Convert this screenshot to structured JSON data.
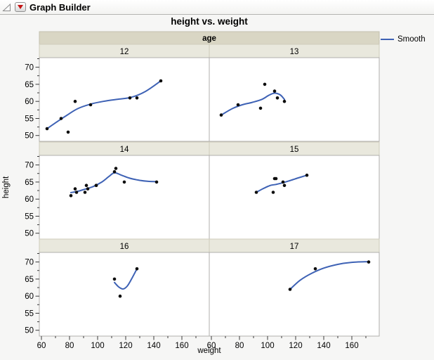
{
  "titlebar": {
    "title": "Graph Builder"
  },
  "chart_data": {
    "type": "scatter",
    "title": "height vs. weight",
    "xlabel": "weight",
    "ylabel": "height",
    "facet": {
      "label": "age",
      "values": [
        "12",
        "13",
        "14",
        "15",
        "16",
        "17"
      ],
      "layout": "2 columns x 3 rows"
    },
    "xlim": [
      58.5,
      179.5
    ],
    "ylim": [
      48.3,
      72.8
    ],
    "x_ticks": [
      60,
      80,
      100,
      120,
      140,
      160
    ],
    "x_minor_ticks": [
      70,
      90,
      110,
      130,
      150,
      170
    ],
    "y_ticks": [
      50,
      55,
      60,
      65,
      70
    ],
    "y_minor_ticks": [
      52.5,
      57.5,
      62.5,
      67.5,
      72.5
    ],
    "grid": false,
    "legend": {
      "label": "Smooth",
      "position": "top-right"
    },
    "panels": [
      {
        "age": "12",
        "points": [
          [
            95,
            59
          ],
          [
            123,
            61
          ],
          [
            74,
            55
          ],
          [
            145,
            66
          ],
          [
            64,
            52
          ],
          [
            84,
            60
          ],
          [
            128,
            61
          ],
          [
            79,
            51
          ]
        ],
        "smooth": [
          [
            64,
            52
          ],
          [
            71,
            54
          ],
          [
            78,
            55.9
          ],
          [
            86,
            57.9
          ],
          [
            95,
            59.2
          ],
          [
            104,
            60
          ],
          [
            114,
            60.6
          ],
          [
            124,
            61.2
          ],
          [
            134,
            62.9
          ],
          [
            145,
            66
          ]
        ]
      },
      {
        "age": "13",
        "points": [
          [
            112,
            60
          ],
          [
            107,
            61
          ],
          [
            67,
            56
          ],
          [
            98,
            65
          ],
          [
            105,
            63
          ],
          [
            95,
            58
          ],
          [
            79,
            59
          ]
        ],
        "smooth": [
          [
            67,
            56
          ],
          [
            75,
            57.9
          ],
          [
            82,
            59
          ],
          [
            89,
            59.7
          ],
          [
            96,
            60.6
          ],
          [
            101,
            61.8
          ],
          [
            105,
            62.4
          ],
          [
            109,
            61.9
          ],
          [
            112,
            60.6
          ]
        ]
      },
      {
        "age": "14",
        "points": [
          [
            81,
            61
          ],
          [
            91,
            62
          ],
          [
            142,
            65
          ],
          [
            84,
            63
          ],
          [
            85,
            62
          ],
          [
            93,
            63
          ],
          [
            99,
            64
          ],
          [
            119,
            65
          ],
          [
            92,
            64
          ],
          [
            112,
            68
          ],
          [
            99,
            64
          ],
          [
            113,
            69
          ]
        ],
        "smooth": [
          [
            81,
            61.9
          ],
          [
            86,
            62.3
          ],
          [
            91,
            62.9
          ],
          [
            97,
            63.7
          ],
          [
            103,
            65
          ],
          [
            108,
            66.6
          ],
          [
            112,
            67.7
          ],
          [
            117,
            67
          ],
          [
            123,
            66.1
          ],
          [
            130,
            65.5
          ],
          [
            136,
            65.2
          ],
          [
            142,
            65.1
          ]
        ]
      },
      {
        "age": "15",
        "points": [
          [
            92,
            62
          ],
          [
            112,
            64
          ],
          [
            128,
            67
          ],
          [
            111,
            65
          ],
          [
            105,
            66
          ],
          [
            104,
            62
          ],
          [
            106,
            66
          ]
        ],
        "smooth": [
          [
            92,
            62
          ],
          [
            97,
            63.1
          ],
          [
            102,
            64
          ],
          [
            106,
            64.3
          ],
          [
            110,
            64.7
          ],
          [
            115,
            65.3
          ],
          [
            121,
            66.1
          ],
          [
            128,
            67
          ]
        ]
      },
      {
        "age": "16",
        "points": [
          [
            112,
            65
          ],
          [
            116,
            60
          ],
          [
            128,
            68
          ]
        ],
        "smooth": [
          [
            112,
            64
          ],
          [
            115,
            62.7
          ],
          [
            118,
            62.1
          ],
          [
            121,
            62.9
          ],
          [
            124,
            64.9
          ],
          [
            128,
            68
          ]
        ]
      },
      {
        "age": "17",
        "points": [
          [
            116,
            62
          ],
          [
            134,
            68
          ],
          [
            172,
            70
          ]
        ],
        "smooth": [
          [
            116,
            62
          ],
          [
            123,
            64.6
          ],
          [
            131,
            66.6
          ],
          [
            140,
            68.2
          ],
          [
            150,
            69.3
          ],
          [
            160,
            69.9
          ],
          [
            172,
            70.1
          ]
        ]
      }
    ]
  },
  "colors": {
    "background": "#f6f6f5",
    "smooth_line": "#3e62b5",
    "point": "#0d0d0d",
    "age_band_bg": "#d9d6c4",
    "band_border": "#c3c0ae",
    "facet_header_bg": "#e9e8dd",
    "header_border": "#cfccbb",
    "panel_bg": "#ffffff",
    "panel_border": "#b0afac",
    "tick": "#3c3c3c",
    "red_triangle": "#c41414"
  }
}
